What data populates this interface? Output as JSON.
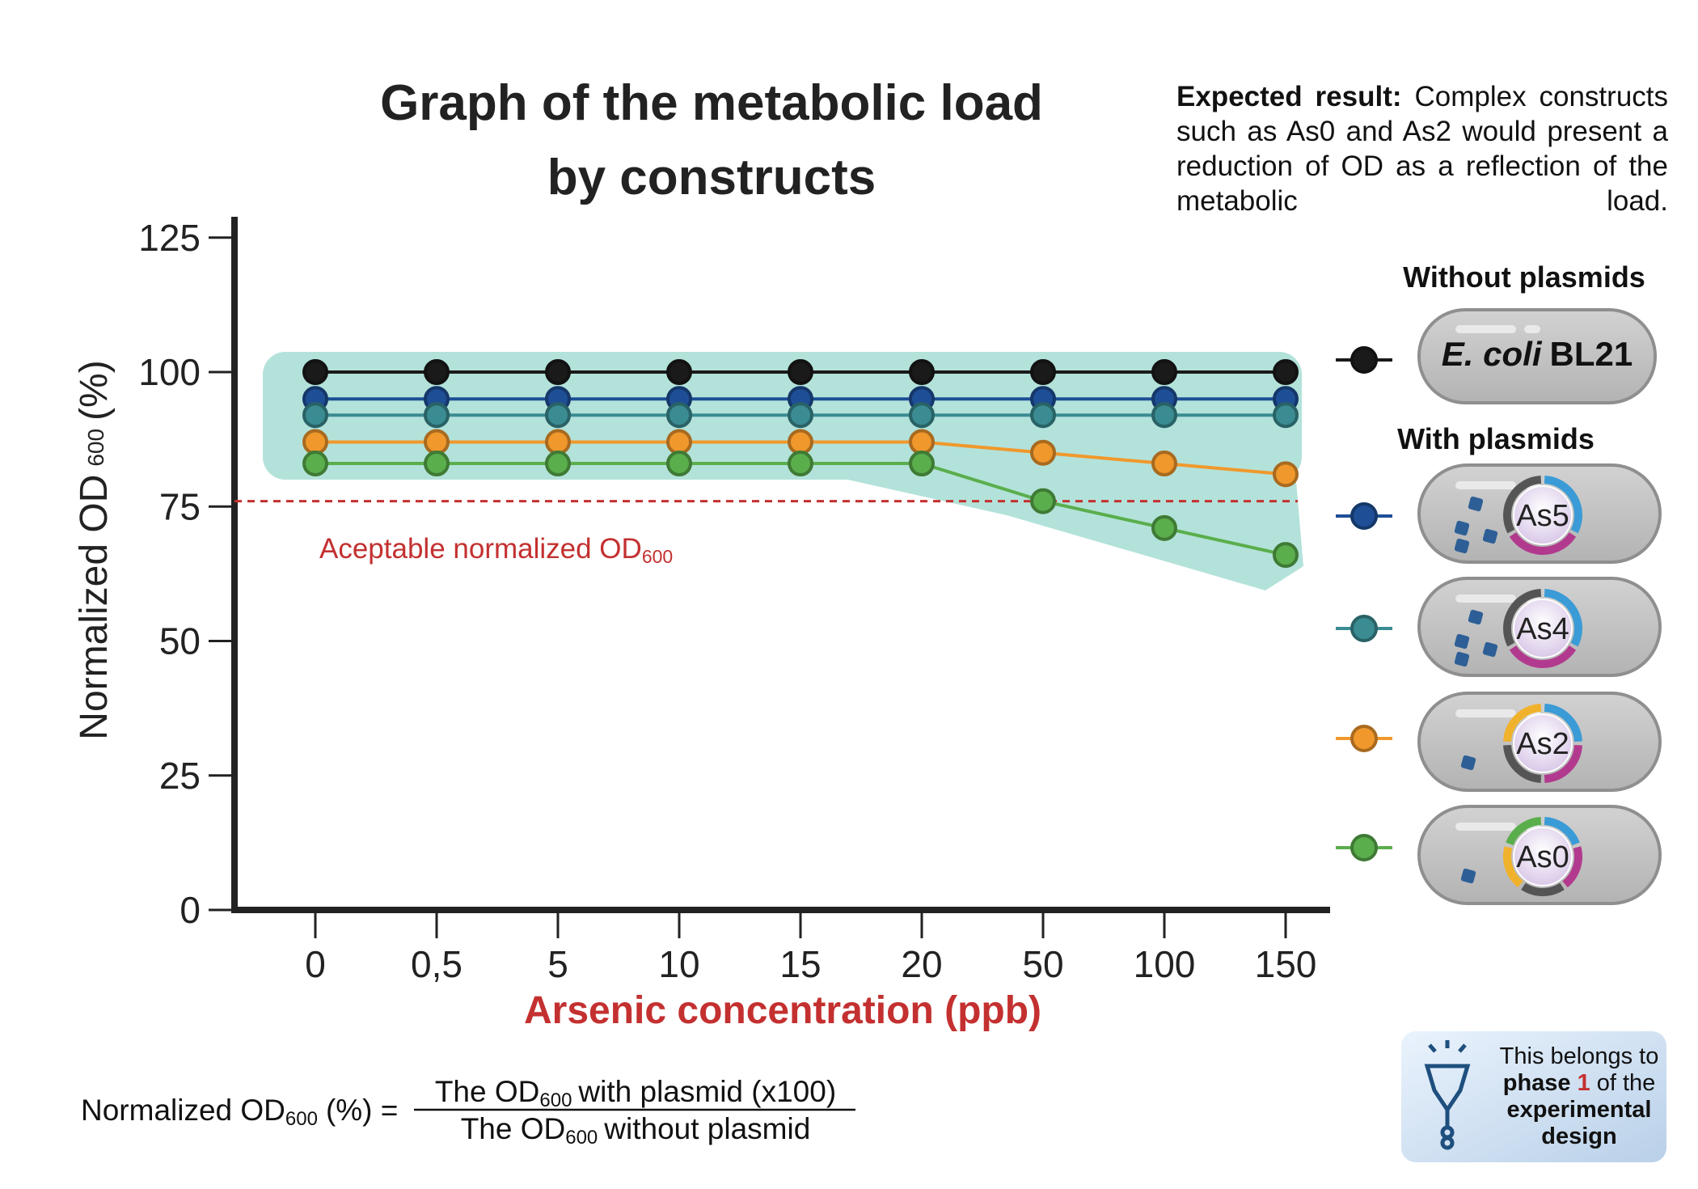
{
  "chart_data": {
    "type": "line",
    "title_line1": "Graph of the metabolic load",
    "title_line2": "by constructs",
    "xlabel": "Arsenic concentration (ppb)",
    "ylabel_main": "Normalized OD",
    "ylabel_sub": "600",
    "ylabel_unit": "(%)",
    "categories": [
      "0",
      "0,5",
      "5",
      "10",
      "15",
      "20",
      "50",
      "100",
      "150"
    ],
    "yticks": [
      "0",
      "25",
      "50",
      "75",
      "100",
      "125"
    ],
    "ylim": [
      0,
      125
    ],
    "grid": false,
    "series": [
      {
        "name": "E. coli BL21",
        "color": "#1a1a1a",
        "values": [
          100,
          100,
          100,
          100,
          100,
          100,
          100,
          100,
          100
        ]
      },
      {
        "name": "As5",
        "color": "#1e4f96",
        "values": [
          95,
          95,
          95,
          95,
          95,
          95,
          95,
          95,
          95
        ]
      },
      {
        "name": "As4",
        "color": "#3a8c92",
        "values": [
          92,
          92,
          92,
          92,
          92,
          92,
          92,
          92,
          92
        ]
      },
      {
        "name": "As2",
        "color": "#f0982c",
        "values": [
          87,
          87,
          87,
          87,
          87,
          87,
          85,
          83,
          81
        ]
      },
      {
        "name": "As0",
        "color": "#5aae4c",
        "values": [
          83,
          83,
          83,
          83,
          83,
          83,
          76,
          71,
          66
        ]
      }
    ],
    "reference_line": {
      "value": 76,
      "label_main": "Aceptable normalized OD",
      "label_sub": "600",
      "color": "#c43030"
    }
  },
  "expected": {
    "label": "Expected result:",
    "text": "Complex constructs such as As0 and As2 would present a reduction of OD as a reflection of the metabolic load."
  },
  "legend": {
    "without_header": "Without plasmids",
    "with_header": "With plasmids",
    "bl21_italic": "E. coli",
    "bl21_text": "BL21",
    "constructs": [
      "As5",
      "As4",
      "As2",
      "As0"
    ]
  },
  "formula": {
    "lhs_main": "Normalized OD",
    "lhs_sub": "600",
    "lhs_unit": "(%) =",
    "num_a": "The OD",
    "num_sub": "600",
    "num_b": "with plasmid (x100)",
    "den_a": "The OD",
    "den_sub": "600",
    "den_b": "without plasmid"
  },
  "badge": {
    "line1": "This belongs to",
    "phase_word": "phase",
    "phase_num": "1",
    "line2_rest": "of the",
    "line3": "experimental",
    "line4": "design",
    "accent": "#c43030"
  }
}
